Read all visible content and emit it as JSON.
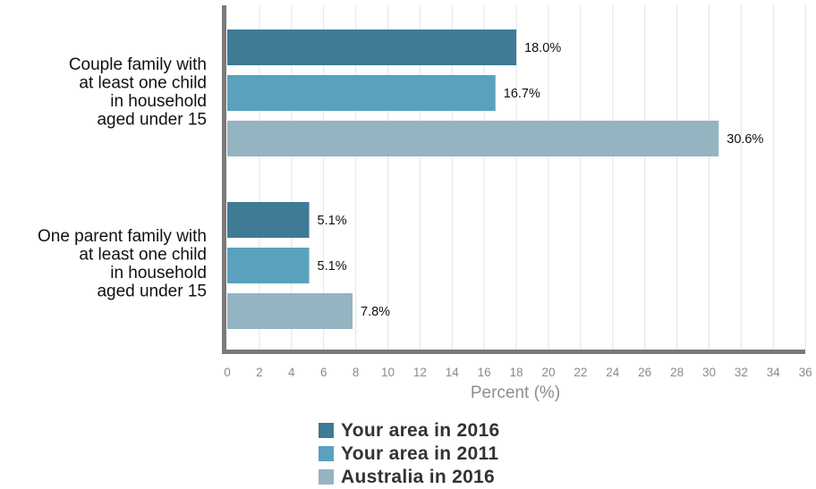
{
  "chart_data": {
    "type": "bar",
    "orientation": "horizontal",
    "categories": [
      [
        "Couple family with",
        "at least one child",
        "in household",
        "aged under 15"
      ],
      [
        "One parent family with",
        "at least one child",
        "in household",
        "aged under 15"
      ]
    ],
    "series": [
      {
        "name": "Your area in 2016",
        "color": "#3f7a97",
        "values": [
          18.0,
          5.1
        ],
        "labels": [
          "18.0%",
          "5.1%"
        ]
      },
      {
        "name": "Your area in 2011",
        "color": "#5aa1bd",
        "values": [
          16.7,
          5.1
        ],
        "labels": [
          "16.7%",
          "5.1%"
        ]
      },
      {
        "name": "Australia in 2016",
        "color": "#94b4c1",
        "values": [
          30.6,
          7.8
        ],
        "labels": [
          "30.6%",
          "7.8%"
        ]
      }
    ],
    "xlabel": "Percent (%)",
    "xlim": [
      0,
      36
    ],
    "xticks": [
      0,
      2,
      4,
      6,
      8,
      10,
      12,
      14,
      16,
      18,
      20,
      22,
      24,
      26,
      28,
      30,
      32,
      34,
      36
    ],
    "grid": true,
    "legend_position": "bottom"
  }
}
